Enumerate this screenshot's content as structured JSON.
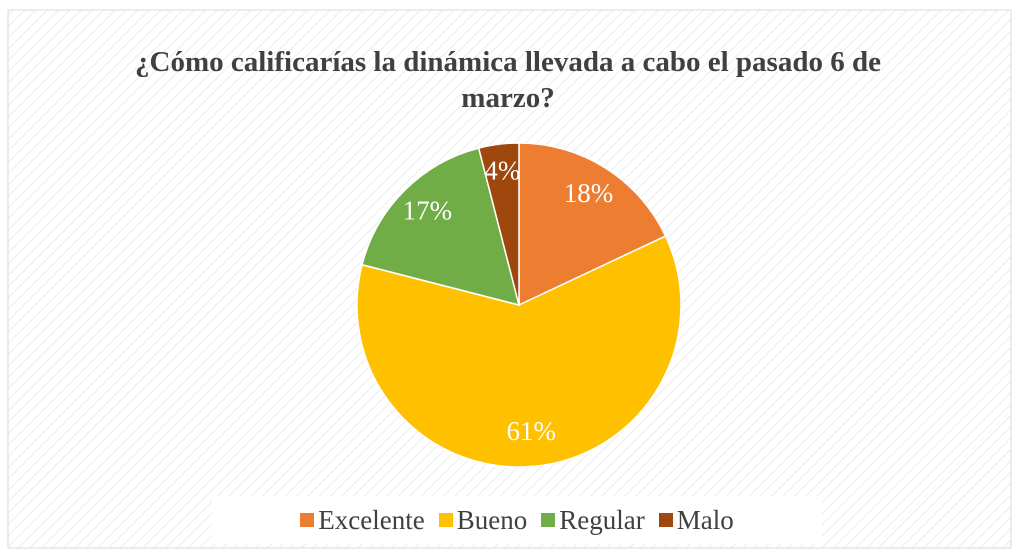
{
  "chart_data": {
    "type": "pie",
    "title": "¿Cómo calificarías la dinámica llevada a cabo el pasado 6 de marzo?",
    "categories": [
      "Excelente",
      "Bueno",
      "Regular",
      "Malo"
    ],
    "values": [
      18,
      61,
      17,
      4
    ],
    "value_labels": [
      "18%",
      "61%",
      "17%",
      "4%"
    ],
    "colors": [
      "#ED7D31",
      "#FFC000",
      "#70AD47",
      "#9E480E"
    ],
    "legend": "bottom"
  }
}
